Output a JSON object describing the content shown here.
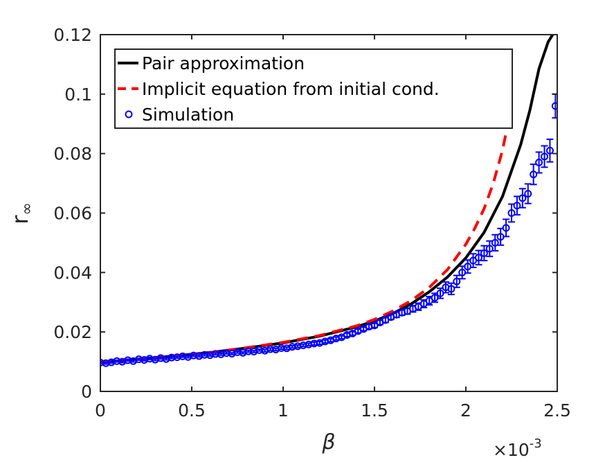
{
  "chart_data": {
    "type": "line",
    "xlabel": "β",
    "ylabel": "r",
    "ylabel_subscript": "∞",
    "x_exponent_label": {
      "base": "×10",
      "exp": "-3"
    },
    "xlim": [
      0,
      2.5
    ],
    "ylim": [
      0,
      0.12
    ],
    "x_ticks": [
      0,
      0.5,
      1,
      1.5,
      2,
      2.5
    ],
    "x_tick_labels": [
      "0",
      "0.5",
      "1",
      "1.5",
      "2",
      "2.5"
    ],
    "y_ticks": [
      0,
      0.02,
      0.04,
      0.06,
      0.08,
      0.1,
      0.12
    ],
    "y_tick_labels": [
      "0",
      "0.02",
      "0.04",
      "0.06",
      "0.08",
      "0.1",
      "0.12"
    ],
    "grid": false,
    "legend_position": "top-left",
    "colors": {
      "pair": "#000000",
      "implicit": "#ff0000",
      "simulation": "#0000ff",
      "axis": "#262626"
    },
    "series": [
      {
        "name": "Pair approximation",
        "style": "solid",
        "x": [
          0,
          0.2,
          0.4,
          0.6,
          0.8,
          1.0,
          1.2,
          1.4,
          1.5,
          1.6,
          1.7,
          1.8,
          1.9,
          2.0,
          2.1,
          2.2,
          2.3,
          2.35,
          2.4,
          2.45,
          2.48
        ],
        "y": [
          0.0098,
          0.0108,
          0.0119,
          0.0131,
          0.0146,
          0.0163,
          0.0186,
          0.0217,
          0.0237,
          0.0262,
          0.0294,
          0.0335,
          0.0385,
          0.0449,
          0.0535,
          0.0655,
          0.083,
          0.0945,
          0.1085,
          0.1175,
          0.1205
        ]
      },
      {
        "name": "Implicit equation from initial cond.",
        "style": "dashed",
        "x": [
          0,
          0.2,
          0.4,
          0.6,
          0.8,
          1.0,
          1.2,
          1.4,
          1.5,
          1.6,
          1.7,
          1.8,
          1.9,
          2.0,
          2.05,
          2.1,
          2.15,
          2.2,
          2.22
        ],
        "y": [
          0.0098,
          0.0108,
          0.0119,
          0.0131,
          0.0147,
          0.0165,
          0.0188,
          0.022,
          0.0242,
          0.027,
          0.0305,
          0.035,
          0.041,
          0.0495,
          0.055,
          0.0615,
          0.07,
          0.081,
          0.087
        ]
      },
      {
        "name": "Simulation",
        "style": "markers",
        "x": [
          0,
          0.03,
          0.06,
          0.09,
          0.12,
          0.15,
          0.18,
          0.21,
          0.24,
          0.27,
          0.3,
          0.33,
          0.36,
          0.39,
          0.42,
          0.45,
          0.48,
          0.51,
          0.54,
          0.57,
          0.6,
          0.63,
          0.66,
          0.69,
          0.72,
          0.75,
          0.78,
          0.81,
          0.84,
          0.87,
          0.9,
          0.93,
          0.96,
          0.99,
          1.02,
          1.05,
          1.08,
          1.11,
          1.14,
          1.17,
          1.2,
          1.23,
          1.26,
          1.29,
          1.32,
          1.35,
          1.38,
          1.41,
          1.44,
          1.47,
          1.5,
          1.53,
          1.56,
          1.59,
          1.62,
          1.65,
          1.68,
          1.71,
          1.74,
          1.77,
          1.8,
          1.83,
          1.86,
          1.89,
          1.92,
          1.95,
          1.98,
          2.01,
          2.04,
          2.07,
          2.1,
          2.13,
          2.16,
          2.19,
          2.22,
          2.25,
          2.28,
          2.31,
          2.34,
          2.37,
          2.4,
          2.43,
          2.46,
          2.49
        ],
        "y": [
          0.0097,
          0.0095,
          0.0098,
          0.0102,
          0.01,
          0.0105,
          0.0102,
          0.0108,
          0.0106,
          0.011,
          0.0107,
          0.0112,
          0.0109,
          0.0114,
          0.0115,
          0.0118,
          0.0116,
          0.0121,
          0.0119,
          0.0123,
          0.0122,
          0.0126,
          0.0125,
          0.0129,
          0.0127,
          0.0132,
          0.013,
          0.0135,
          0.0134,
          0.0139,
          0.0137,
          0.0142,
          0.0141,
          0.0146,
          0.0145,
          0.015,
          0.0152,
          0.0155,
          0.0158,
          0.0161,
          0.0163,
          0.0168,
          0.0172,
          0.0178,
          0.0182,
          0.019,
          0.0195,
          0.0203,
          0.021,
          0.0218,
          0.0222,
          0.0232,
          0.024,
          0.025,
          0.0258,
          0.0265,
          0.027,
          0.0278,
          0.0285,
          0.0295,
          0.0305,
          0.0315,
          0.033,
          0.035,
          0.0345,
          0.037,
          0.04,
          0.042,
          0.044,
          0.045,
          0.0465,
          0.048,
          0.05,
          0.052,
          0.055,
          0.06,
          0.0625,
          0.065,
          0.0665,
          0.073,
          0.077,
          0.079,
          0.081,
          0.096
        ],
        "err": [
          0.0003,
          0.0003,
          0.0003,
          0.0003,
          0.0003,
          0.0003,
          0.0003,
          0.0003,
          0.0003,
          0.0003,
          0.0003,
          0.0003,
          0.0003,
          0.0003,
          0.0003,
          0.0003,
          0.0003,
          0.0003,
          0.0003,
          0.0003,
          0.0003,
          0.0003,
          0.0003,
          0.0003,
          0.0003,
          0.0003,
          0.0003,
          0.0003,
          0.0003,
          0.0003,
          0.0004,
          0.0004,
          0.0004,
          0.0004,
          0.0004,
          0.0004,
          0.0004,
          0.0004,
          0.0004,
          0.0005,
          0.0005,
          0.0005,
          0.0005,
          0.0005,
          0.0005,
          0.0006,
          0.0006,
          0.0006,
          0.0006,
          0.0007,
          0.0007,
          0.0007,
          0.0008,
          0.0008,
          0.0009,
          0.0009,
          0.001,
          0.0011,
          0.0012,
          0.0013,
          0.0014,
          0.0015,
          0.0017,
          0.0018,
          0.0019,
          0.002,
          0.0021,
          0.0022,
          0.0023,
          0.0024,
          0.0025,
          0.0026,
          0.0027,
          0.0028,
          0.0029,
          0.003,
          0.0031,
          0.0032,
          0.0033,
          0.0034,
          0.0035,
          0.0036,
          0.0038,
          0.004
        ]
      }
    ]
  }
}
